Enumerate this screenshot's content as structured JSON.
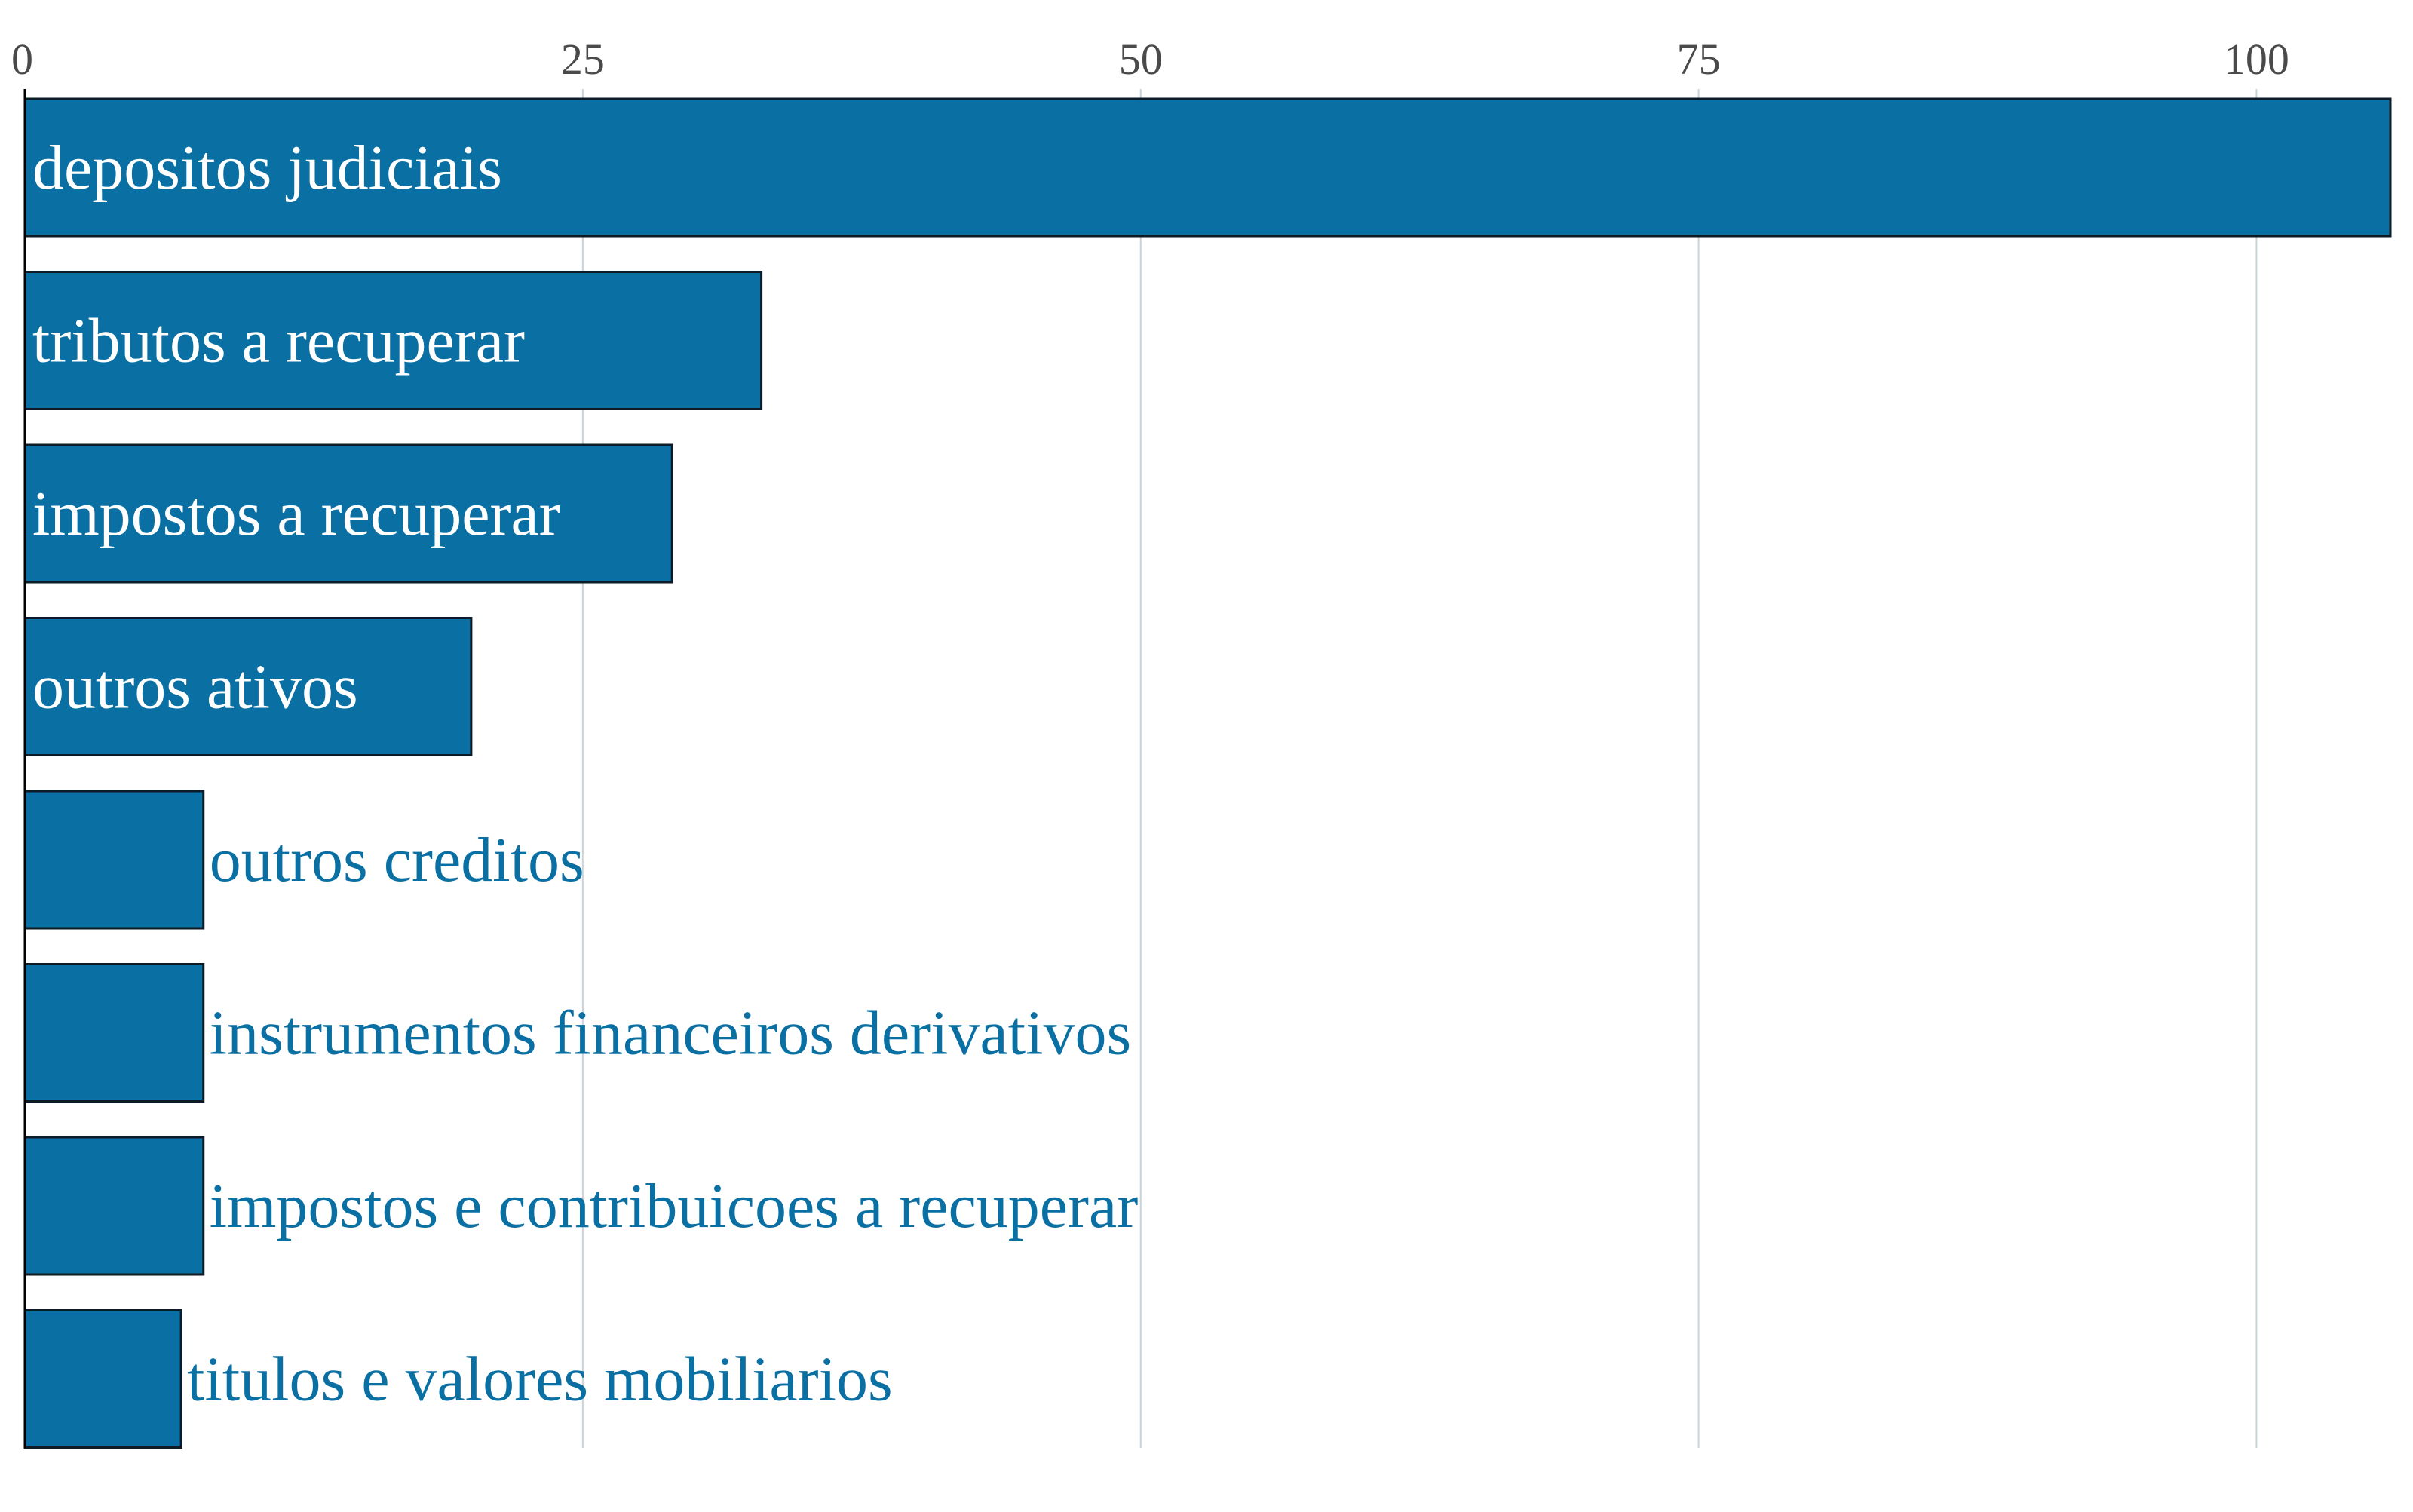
{
  "chart_data": {
    "type": "bar",
    "orientation": "horizontal",
    "title": "",
    "xlabel": "",
    "ylabel": "",
    "xlim": [
      0,
      106
    ],
    "x_ticks": [
      0,
      25,
      50,
      75,
      100
    ],
    "x_tick_labels": [
      "0",
      "25",
      "50",
      "75",
      "100"
    ],
    "x_axis_position": "top",
    "grid": true,
    "legend": "none",
    "categories": [
      "depositos judiciais",
      "tributos a recuperar",
      "impostos a recuperar",
      "outros ativos",
      "outros creditos",
      "instrumentos financeiros derivativos",
      "impostos e contribuicoes a recuperar",
      "titulos e valores mobiliarios"
    ],
    "values": [
      106,
      33,
      29,
      20,
      8,
      8,
      8,
      7
    ],
    "colors": {
      "bar": "#0a6fa3",
      "bar_stroke": "#0d1b26",
      "label_outside": "#0a6fa3",
      "label_inside": "#ffffff",
      "grid": "#c9d3d8",
      "tick_text": "#4a4a4a",
      "axis": "#000000"
    }
  }
}
